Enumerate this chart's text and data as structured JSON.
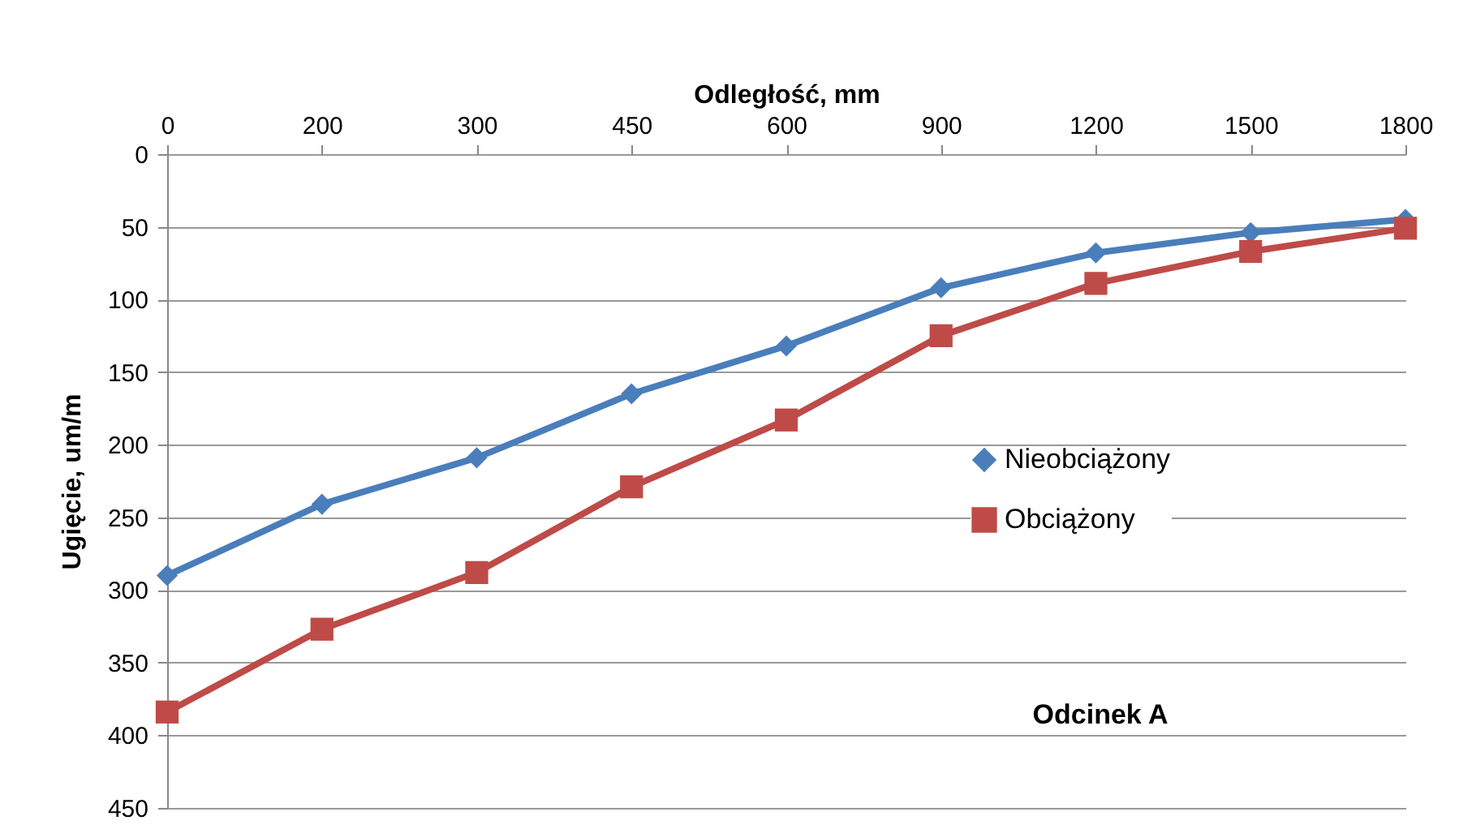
{
  "chart_data": {
    "type": "line",
    "xlabel": "Odległość, mm",
    "ylabel": "Ugięcie, um/m",
    "categories": [
      "0",
      "200",
      "300",
      "450",
      "600",
      "900",
      "1200",
      "1500",
      "1800"
    ],
    "series": [
      {
        "name": "Nieobciążony",
        "color": "#4a7ebb",
        "marker": "diamond",
        "values": [
          290,
          241,
          209,
          165,
          132,
          92,
          68,
          54,
          45
        ]
      },
      {
        "name": "Obciążony",
        "color": "#be4b48",
        "marker": "square",
        "values": [
          384,
          327,
          288,
          229,
          183,
          125,
          89,
          67,
          51
        ]
      }
    ],
    "ylim": [
      450,
      0
    ],
    "yticks": [
      0,
      50,
      100,
      150,
      200,
      250,
      300,
      350,
      400,
      450
    ],
    "grid": "y",
    "legend": "right",
    "line_style": "solid",
    "annotations": [
      "Odcinek A"
    ]
  }
}
